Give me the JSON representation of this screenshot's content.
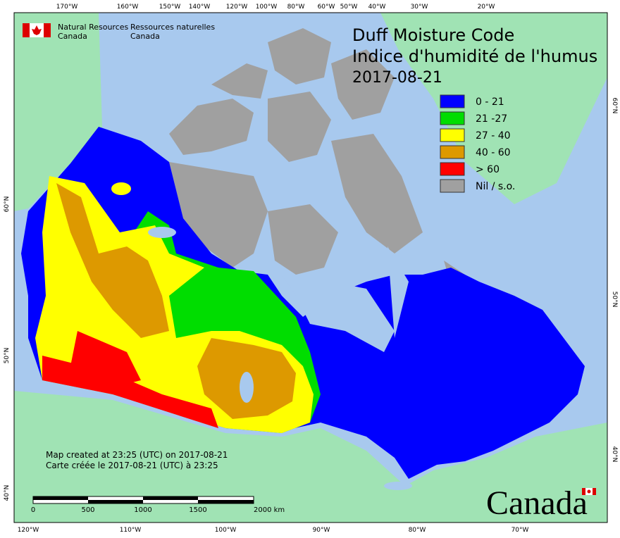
{
  "header": {
    "agency_en": [
      "Natural Resources",
      "Canada"
    ],
    "agency_fr": [
      "Ressources naturelles",
      "Canada"
    ]
  },
  "title": {
    "lines": [
      "Duff Moisture Code",
      "Indice d'humidité de l'humus",
      "2017-08-21"
    ]
  },
  "legend": {
    "items": [
      {
        "label": "0 - 21",
        "color": "#0000ff"
      },
      {
        "label": "21 -27",
        "color": "#00dd00"
      },
      {
        "label": "27 - 40",
        "color": "#ffff00"
      },
      {
        "label": "40 - 60",
        "color": "#dd9900"
      },
      {
        "label": "> 60",
        "color": "#ff0000"
      },
      {
        "label": "Nil / s.o.",
        "color": "#a0a0a0"
      }
    ]
  },
  "axes": {
    "top": [
      "170°W",
      "160°W",
      "150°W",
      "140°W",
      "120°W",
      "100°W",
      "80°W",
      "60°W",
      "50°W",
      "40°W",
      "30°W",
      "20°W"
    ],
    "bottom": [
      "120°W",
      "110°W",
      "100°W",
      "90°W",
      "80°W",
      "70°W"
    ],
    "left": [
      "60°N",
      "50°N",
      "40°N"
    ],
    "right": [
      "60°N",
      "50°N",
      "40°N"
    ]
  },
  "notes": [
    "Map created at 23:25 (UTC) on 2017-08-21",
    "Carte créée le 2017-08-21 (UTC) à 23:25"
  ],
  "scale_bar": [
    "0",
    "500",
    "1000",
    "1500",
    "2000 km"
  ],
  "wordmark": "Canada"
}
